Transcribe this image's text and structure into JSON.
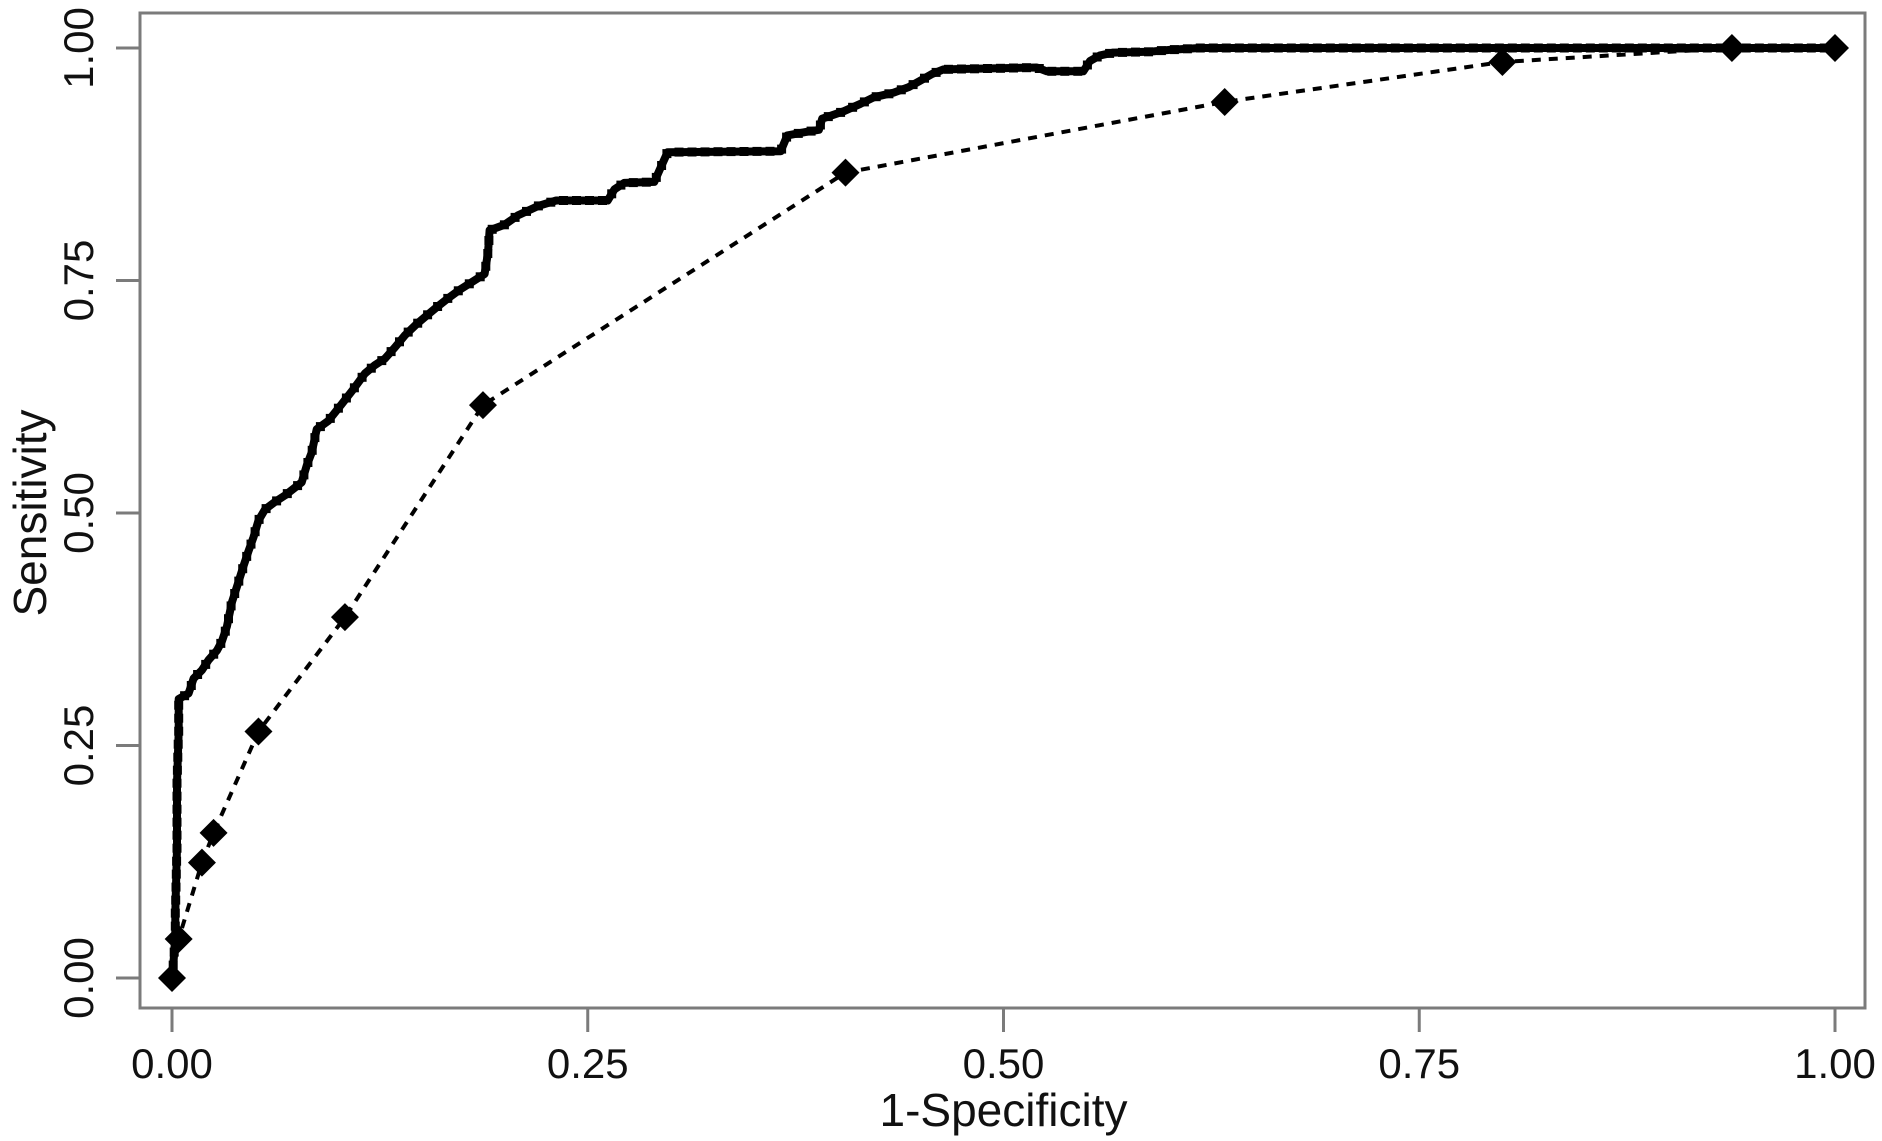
{
  "figure": {
    "background": "#ffffff"
  },
  "colors": {
    "frame": "#7b7b7b",
    "tick": "#7b7b7b",
    "text": "#111111",
    "series": "#000000"
  },
  "chart_data": {
    "type": "line",
    "title": "",
    "xlabel": "1-Specificity",
    "ylabel": "Sensitivity",
    "xlim": [
      0,
      1
    ],
    "ylim": [
      0,
      1
    ],
    "grid": false,
    "legend": "none",
    "xticks": {
      "values": [
        0,
        0.25,
        0.5,
        0.75,
        1
      ],
      "labels": [
        "0.00",
        "0.25",
        "0.50",
        "0.75",
        "1.00"
      ]
    },
    "yticks": {
      "values": [
        0,
        0.25,
        0.5,
        0.75,
        1
      ],
      "labels": [
        "0.00",
        "0.25",
        "0.50",
        "0.75",
        "1.00"
      ]
    },
    "series": [
      {
        "name": "roc-thick-stepped-curve",
        "marker": "square-dense",
        "line": "solid-thick",
        "color": "#000000",
        "points": [
          [
            0.0,
            0.0
          ],
          [
            0.001,
            0.02
          ],
          [
            0.002,
            0.045
          ],
          [
            0.002,
            0.07
          ],
          [
            0.003,
            0.14
          ],
          [
            0.003,
            0.21
          ],
          [
            0.004,
            0.265
          ],
          [
            0.004,
            0.3
          ],
          [
            0.01,
            0.306
          ],
          [
            0.013,
            0.322
          ],
          [
            0.018,
            0.331
          ],
          [
            0.022,
            0.342
          ],
          [
            0.027,
            0.352
          ],
          [
            0.03,
            0.362
          ],
          [
            0.033,
            0.378
          ],
          [
            0.036,
            0.404
          ],
          [
            0.04,
            0.426
          ],
          [
            0.043,
            0.443
          ],
          [
            0.046,
            0.459
          ],
          [
            0.049,
            0.474
          ],
          [
            0.052,
            0.492
          ],
          [
            0.056,
            0.504
          ],
          [
            0.062,
            0.512
          ],
          [
            0.068,
            0.519
          ],
          [
            0.073,
            0.526
          ],
          [
            0.078,
            0.533
          ],
          [
            0.081,
            0.551
          ],
          [
            0.084,
            0.565
          ],
          [
            0.087,
            0.59
          ],
          [
            0.094,
            0.599
          ],
          [
            0.102,
            0.617
          ],
          [
            0.109,
            0.633
          ],
          [
            0.116,
            0.65
          ],
          [
            0.122,
            0.659
          ],
          [
            0.128,
            0.666
          ],
          [
            0.134,
            0.678
          ],
          [
            0.14,
            0.691
          ],
          [
            0.147,
            0.703
          ],
          [
            0.153,
            0.712
          ],
          [
            0.159,
            0.721
          ],
          [
            0.166,
            0.731
          ],
          [
            0.173,
            0.74
          ],
          [
            0.181,
            0.749
          ],
          [
            0.188,
            0.757
          ],
          [
            0.19,
            0.78
          ],
          [
            0.191,
            0.804
          ],
          [
            0.2,
            0.81
          ],
          [
            0.208,
            0.82
          ],
          [
            0.22,
            0.83
          ],
          [
            0.231,
            0.836
          ],
          [
            0.262,
            0.836
          ],
          [
            0.266,
            0.848
          ],
          [
            0.272,
            0.855
          ],
          [
            0.29,
            0.856
          ],
          [
            0.294,
            0.872
          ],
          [
            0.298,
            0.888
          ],
          [
            0.366,
            0.889
          ],
          [
            0.37,
            0.906
          ],
          [
            0.382,
            0.91
          ],
          [
            0.389,
            0.912
          ],
          [
            0.391,
            0.924
          ],
          [
            0.404,
            0.932
          ],
          [
            0.414,
            0.94
          ],
          [
            0.422,
            0.947
          ],
          [
            0.434,
            0.952
          ],
          [
            0.443,
            0.958
          ],
          [
            0.45,
            0.965
          ],
          [
            0.457,
            0.972
          ],
          [
            0.464,
            0.977
          ],
          [
            0.52,
            0.979
          ],
          [
            0.526,
            0.975
          ],
          [
            0.548,
            0.975
          ],
          [
            0.552,
            0.986
          ],
          [
            0.558,
            0.992
          ],
          [
            0.566,
            0.995
          ],
          [
            0.588,
            0.996
          ],
          [
            0.6,
            0.998
          ],
          [
            0.618,
            1.0
          ],
          [
            1.0,
            1.0
          ]
        ]
      },
      {
        "name": "roc-thin-diamond-curve",
        "marker": "diamond",
        "line": "dashed-thin",
        "color": "#000000",
        "points": [
          [
            0.0,
            0.0
          ],
          [
            0.004,
            0.042
          ],
          [
            0.018,
            0.124
          ],
          [
            0.025,
            0.156
          ],
          [
            0.052,
            0.265
          ],
          [
            0.104,
            0.388
          ],
          [
            0.187,
            0.616
          ],
          [
            0.405,
            0.866
          ],
          [
            0.633,
            0.942
          ],
          [
            0.8,
            0.985
          ],
          [
            0.938,
            1.0
          ],
          [
            1.0,
            1.0
          ]
        ]
      }
    ]
  }
}
